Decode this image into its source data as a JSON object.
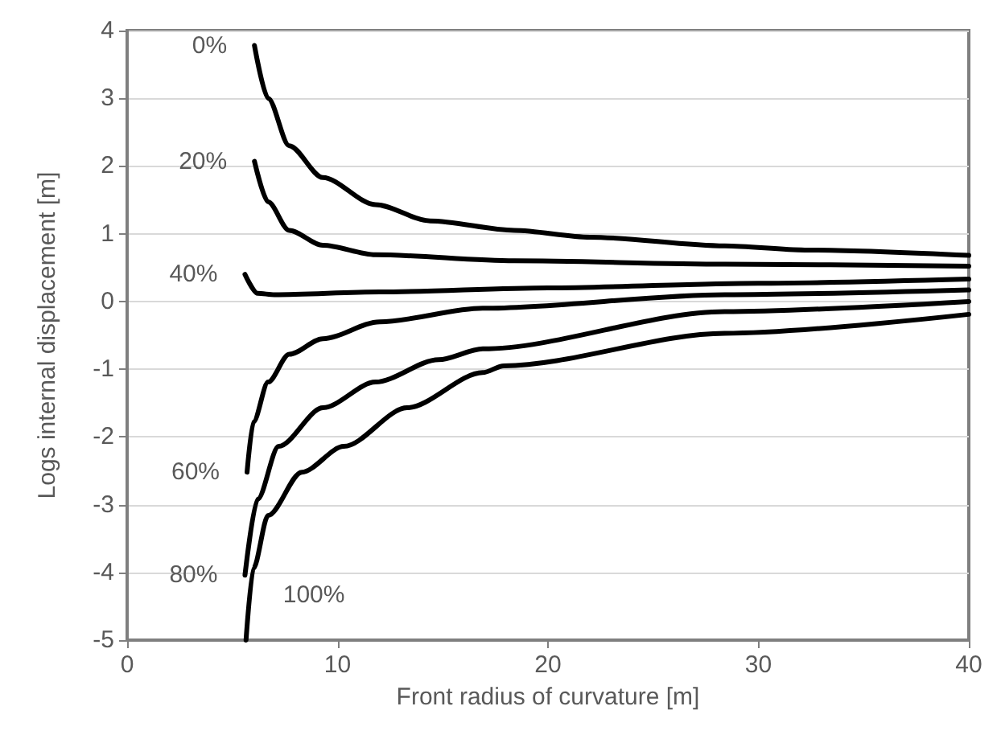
{
  "chart_data": {
    "type": "line",
    "xlabel": "Front radius of curvature [m]",
    "ylabel": "Logs internal displacement [m]",
    "xlim": [
      0,
      40
    ],
    "xticks": [
      0,
      10,
      20,
      30,
      40
    ],
    "ylim": [
      -5,
      4
    ],
    "yticks": [
      -5,
      -4,
      -3,
      -2,
      -1,
      0,
      1,
      2,
      3,
      4
    ],
    "grid": "y",
    "legend": false,
    "marker": "none",
    "line_style": "solid",
    "series": [
      {
        "name": "0%",
        "color": "#000000",
        "x": [
          6.05,
          6.7,
          7.7,
          9.3,
          11.8,
          14.4,
          18.4,
          22,
          28.4,
          32.2,
          40
        ],
        "values": [
          3.78,
          3.0,
          2.3,
          1.83,
          1.43,
          1.19,
          1.05,
          0.95,
          0.82,
          0.76,
          0.68
        ]
      },
      {
        "name": "20%",
        "color": "#000000",
        "x": [
          6.05,
          6.7,
          7.7,
          9.3,
          11.8,
          18.4,
          28.4,
          40
        ],
        "values": [
          2.07,
          1.47,
          1.05,
          0.83,
          0.69,
          0.6,
          0.55,
          0.52
        ]
      },
      {
        "name": "40%",
        "color": "#000000",
        "x": [
          5.6,
          6.2,
          7,
          12,
          20,
          30,
          40
        ],
        "values": [
          0.4,
          0.12,
          0.1,
          0.14,
          0.2,
          0.27,
          0.33
        ]
      },
      {
        "name": "60%",
        "color": "#000000",
        "x": [
          5.7,
          6.0,
          6.7,
          7.7,
          9.3,
          12,
          16.9,
          28.4,
          40
        ],
        "values": [
          -2.52,
          -1.78,
          -1.19,
          -0.78,
          -0.55,
          -0.3,
          -0.1,
          0.1,
          0.17
        ]
      },
      {
        "name": "80%",
        "color": "#000000",
        "x": [
          5.6,
          6.2,
          7.2,
          9.3,
          11.8,
          14.8,
          16.9,
          28.4,
          40
        ],
        "values": [
          -4.04,
          -2.92,
          -2.14,
          -1.57,
          -1.19,
          -0.86,
          -0.7,
          -0.15,
          0.0
        ]
      },
      {
        "name": "100%",
        "color": "#000000",
        "x": [
          5.65,
          6.0,
          6.7,
          8.3,
          10.3,
          13.3,
          16.9,
          17.9,
          28.4,
          40
        ],
        "values": [
          -5,
          -3.94,
          -3.16,
          -2.52,
          -2.14,
          -1.57,
          -1.05,
          -0.95,
          -0.47,
          -0.19
        ]
      }
    ]
  }
}
